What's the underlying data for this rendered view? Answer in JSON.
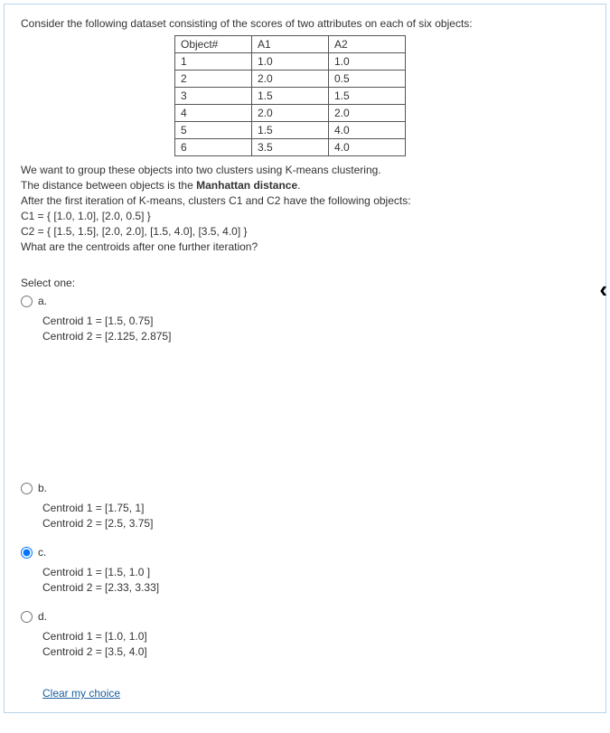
{
  "question": {
    "intro": "Consider the following dataset consisting of the scores of two attributes on each of six objects:",
    "table": {
      "headers": [
        "Object#",
        "A1",
        "A2"
      ],
      "rows": [
        [
          "1",
          "1.0",
          "1.0"
        ],
        [
          "2",
          "2.0",
          "0.5"
        ],
        [
          "3",
          "1.5",
          "1.5"
        ],
        [
          "4",
          "2.0",
          "2.0"
        ],
        [
          "5",
          "1.5",
          "4.0"
        ],
        [
          "6",
          "3.5",
          "4.0"
        ]
      ]
    },
    "line1": "We want to group these objects into two clusters using K-means clustering.",
    "line2_a": "The distance between objects is the ",
    "line2_b": "Manhattan distance",
    "line2_c": ".",
    "line3": "After the first iteration of K-means, clusters C1 and C2 have the following objects:",
    "line4": "C1 = { [1.0, 1.0], [2.0, 0.5] }",
    "line5": "C2 = { [1.5, 1.5], [2.0, 2.0], [1.5, 4.0], [3.5, 4.0] }",
    "line6": "What are the centroids after one further iteration?"
  },
  "select_one_label": "Select one:",
  "options": {
    "a": {
      "letter": "a.",
      "l1": "Centroid 1 =  [1.5, 0.75]",
      "l2": "Centroid 2 =  [2.125, 2.875]"
    },
    "b": {
      "letter": "b.",
      "l1": "Centroid 1 = [1.75, 1]",
      "l2": "Centroid 2 = [2.5, 3.75]"
    },
    "c": {
      "letter": "c.",
      "l1": "Centroid 1 = [1.5, 1.0 ]",
      "l2": "Centroid 2 =  [2.33, 3.33]"
    },
    "d": {
      "letter": "d.",
      "l1": "Centroid 1 = [1.0, 1.0]",
      "l2": "Centroid 2 = [3.5, 4.0]"
    }
  },
  "clear_label": "Clear my choice",
  "chevron": "‹"
}
